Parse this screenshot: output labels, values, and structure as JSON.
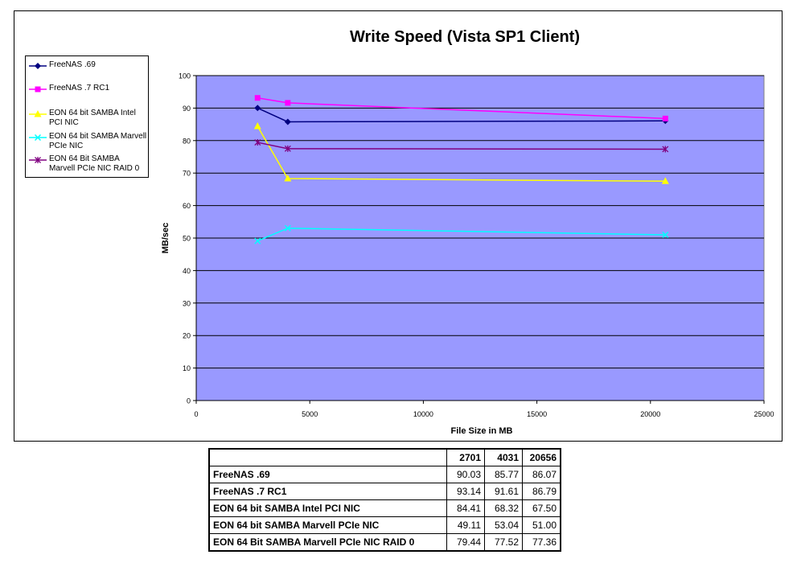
{
  "chart_data": {
    "type": "scatter-line",
    "title": "Write Speed (Vista SP1 Client)",
    "xlabel": "File Size in MB",
    "ylabel": "MB/sec",
    "xlim": [
      0,
      25000
    ],
    "ylim": [
      0,
      100
    ],
    "x_ticks": [
      "0",
      "5000",
      "10000",
      "15000",
      "20000",
      "25000"
    ],
    "y_ticks": [
      "0",
      "10",
      "20",
      "30",
      "40",
      "50",
      "60",
      "70",
      "80",
      "90",
      "100"
    ],
    "grid": "horizontal",
    "legend_position": "left",
    "x": [
      2701,
      4031,
      20656
    ],
    "series": [
      {
        "name": "FreeNAS .69",
        "values": [
          90.03,
          85.77,
          86.07
        ],
        "color": "#000080",
        "marker": "diamond"
      },
      {
        "name": "FreeNAS .7 RC1",
        "values": [
          93.14,
          91.61,
          86.79
        ],
        "color": "#ff00ff",
        "marker": "square"
      },
      {
        "name": "EON 64 bit SAMBA Intel PCI NIC",
        "values": [
          84.41,
          68.32,
          67.5
        ],
        "color": "#ffff00",
        "marker": "triangle"
      },
      {
        "name": "EON 64 bit SAMBA Marvell PCIe NIC",
        "values": [
          49.11,
          53.04,
          51.0
        ],
        "color": "#00ffff",
        "marker": "x"
      },
      {
        "name": "EON 64 Bit SAMBA Marvell PCIe NIC RAID 0",
        "values": [
          79.44,
          77.52,
          77.36
        ],
        "color": "#800080",
        "marker": "star"
      }
    ],
    "colors": {
      "plot_bg": "#9999ff",
      "frame": "#000000"
    }
  },
  "legend": {
    "items": [
      "FreeNAS .69",
      "FreeNAS .7 RC1",
      "EON 64 bit SAMBA Intel PCI NIC",
      "EON 64 bit SAMBA Marvell PCIe NIC",
      "EON 64 Bit SAMBA Marvell PCIe NIC RAID 0"
    ]
  },
  "table": {
    "header": [
      "",
      "2701",
      "4031",
      "20656"
    ],
    "rows": [
      {
        "name": "FreeNAS .69",
        "values": [
          "90.03",
          "85.77",
          "86.07"
        ]
      },
      {
        "name": "FreeNAS .7 RC1",
        "values": [
          "93.14",
          "91.61",
          "86.79"
        ]
      },
      {
        "name": "EON 64 bit SAMBA Intel PCI NIC",
        "values": [
          "84.41",
          "68.32",
          "67.50"
        ]
      },
      {
        "name": "EON 64 bit SAMBA Marvell PCIe NIC",
        "values": [
          "49.11",
          "53.04",
          "51.00"
        ]
      },
      {
        "name": "EON 64 Bit SAMBA Marvell PCIe NIC RAID 0",
        "values": [
          "79.44",
          "77.52",
          "77.36"
        ]
      }
    ]
  }
}
